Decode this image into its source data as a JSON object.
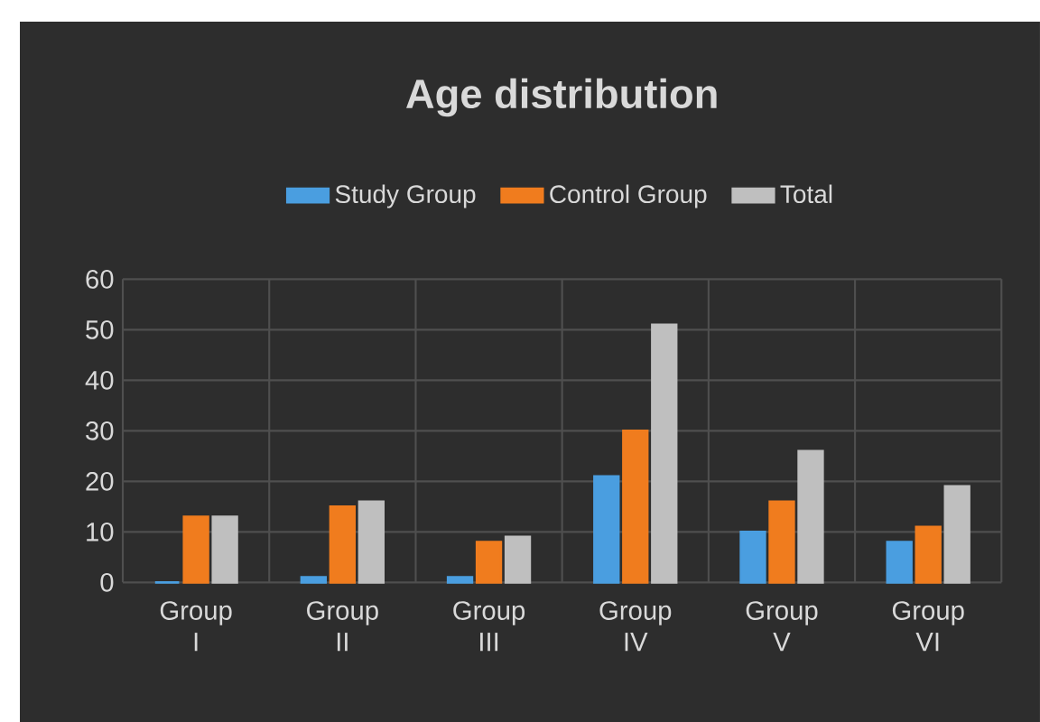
{
  "chart_data": {
    "type": "bar",
    "title": "Age distribution",
    "categories": [
      "Group I",
      "Group II",
      "Group III",
      "Group IV",
      "Group V",
      "Group VI"
    ],
    "series": [
      {
        "name": "Study Group",
        "color": "#4a9ee0",
        "values": [
          0,
          1,
          1,
          21,
          10,
          8
        ]
      },
      {
        "name": "Control Group",
        "color": "#f07c1e",
        "values": [
          13,
          15,
          8,
          30,
          16,
          11
        ]
      },
      {
        "name": "Total",
        "color": "#bfbfbf",
        "values": [
          13,
          16,
          9,
          51,
          26,
          19
        ]
      }
    ],
    "ylim": [
      0,
      60
    ],
    "yticks": [
      0,
      10,
      20,
      30,
      40,
      50,
      60
    ],
    "grid": true,
    "legend": "top"
  }
}
